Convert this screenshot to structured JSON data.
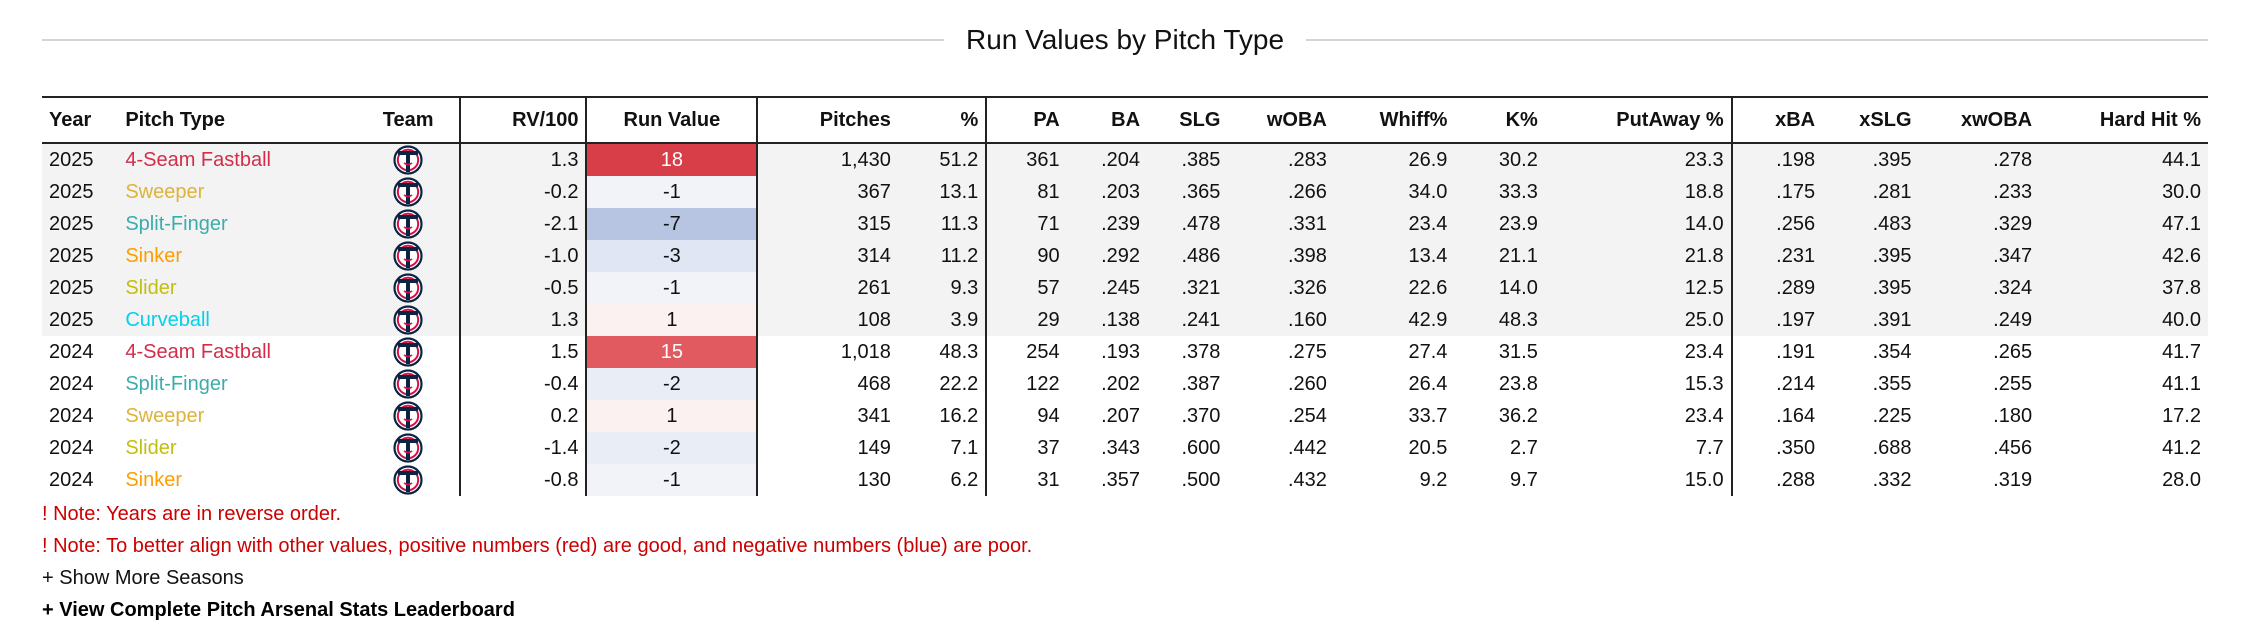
{
  "title": "Run Values by Pitch Type",
  "columns": [
    "Year",
    "Pitch Type",
    "Team",
    "RV/100",
    "Run Value",
    "Pitches",
    "%",
    "PA",
    "BA",
    "SLG",
    "wOBA",
    "Whiff%",
    "K%",
    "PutAway %",
    "xBA",
    "xSLG",
    "xwOBA",
    "Hard Hit %"
  ],
  "team_icon": "twins-logo-icon",
  "colors": {
    "note": "#cc0000"
  },
  "rows": [
    {
      "year": "2025",
      "pitch": "4-Seam Fastball",
      "pitch_color": "#d22d49",
      "team": "twins-logo",
      "rv100": "1.3",
      "rv": "18",
      "rv_bg": "#d83e48",
      "rv_fg": "#ffffff",
      "pitches": "1,430",
      "pct": "51.2",
      "pa": "361",
      "ba": ".204",
      "slg": ".385",
      "woba": ".283",
      "whiff": "26.9",
      "k": "30.2",
      "putaway": "23.3",
      "xba": ".198",
      "xslg": ".395",
      "xwoba": ".278",
      "hardhit": "44.1"
    },
    {
      "year": "2025",
      "pitch": "Sweeper",
      "pitch_color": "#ddb33a",
      "team": "twins-logo",
      "rv100": "-0.2",
      "rv": "-1",
      "rv_bg": "#f1f3f9",
      "rv_fg": "#111111",
      "pitches": "367",
      "pct": "13.1",
      "pa": "81",
      "ba": ".203",
      "slg": ".365",
      "woba": ".266",
      "whiff": "34.0",
      "k": "33.3",
      "putaway": "18.8",
      "xba": ".175",
      "xslg": ".281",
      "xwoba": ".233",
      "hardhit": "30.0"
    },
    {
      "year": "2025",
      "pitch": "Split-Finger",
      "pitch_color": "#3bacac",
      "team": "twins-logo",
      "rv100": "-2.1",
      "rv": "-7",
      "rv_bg": "#b7c4e2",
      "rv_fg": "#111111",
      "pitches": "315",
      "pct": "11.3",
      "pa": "71",
      "ba": ".239",
      "slg": ".478",
      "woba": ".331",
      "whiff": "23.4",
      "k": "23.9",
      "putaway": "14.0",
      "xba": ".256",
      "xslg": ".483",
      "xwoba": ".329",
      "hardhit": "47.1"
    },
    {
      "year": "2025",
      "pitch": "Sinker",
      "pitch_color": "#fe9d00",
      "team": "twins-logo",
      "rv100": "-1.0",
      "rv": "-3",
      "rv_bg": "#e0e6f3",
      "rv_fg": "#111111",
      "pitches": "314",
      "pct": "11.2",
      "pa": "90",
      "ba": ".292",
      "slg": ".486",
      "woba": ".398",
      "whiff": "13.4",
      "k": "21.1",
      "putaway": "21.8",
      "xba": ".231",
      "xslg": ".395",
      "xwoba": ".347",
      "hardhit": "42.6"
    },
    {
      "year": "2025",
      "pitch": "Slider",
      "pitch_color": "#c3bd0e",
      "team": "twins-logo",
      "rv100": "-0.5",
      "rv": "-1",
      "rv_bg": "#f1f3f9",
      "rv_fg": "#111111",
      "pitches": "261",
      "pct": "9.3",
      "pa": "57",
      "ba": ".245",
      "slg": ".321",
      "woba": ".326",
      "whiff": "22.6",
      "k": "14.0",
      "putaway": "12.5",
      "xba": ".289",
      "xslg": ".395",
      "xwoba": ".324",
      "hardhit": "37.8"
    },
    {
      "year": "2025",
      "pitch": "Curveball",
      "pitch_color": "#00d1ed",
      "team": "twins-logo",
      "rv100": "1.3",
      "rv": "1",
      "rv_bg": "#fbf1f1",
      "rv_fg": "#111111",
      "pitches": "108",
      "pct": "3.9",
      "pa": "29",
      "ba": ".138",
      "slg": ".241",
      "woba": ".160",
      "whiff": "42.9",
      "k": "48.3",
      "putaway": "25.0",
      "xba": ".197",
      "xslg": ".391",
      "xwoba": ".249",
      "hardhit": "40.0"
    },
    {
      "year": "2024",
      "pitch": "4-Seam Fastball",
      "pitch_color": "#d22d49",
      "team": "twins-logo",
      "rv100": "1.5",
      "rv": "15",
      "rv_bg": "#e05a60",
      "rv_fg": "#ffffff",
      "pitches": "1,018",
      "pct": "48.3",
      "pa": "254",
      "ba": ".193",
      "slg": ".378",
      "woba": ".275",
      "whiff": "27.4",
      "k": "31.5",
      "putaway": "23.4",
      "xba": ".191",
      "xslg": ".354",
      "xwoba": ".265",
      "hardhit": "41.7"
    },
    {
      "year": "2024",
      "pitch": "Split-Finger",
      "pitch_color": "#3bacac",
      "team": "twins-logo",
      "rv100": "-0.4",
      "rv": "-2",
      "rv_bg": "#e9edf6",
      "rv_fg": "#111111",
      "pitches": "468",
      "pct": "22.2",
      "pa": "122",
      "ba": ".202",
      "slg": ".387",
      "woba": ".260",
      "whiff": "26.4",
      "k": "23.8",
      "putaway": "15.3",
      "xba": ".214",
      "xslg": ".355",
      "xwoba": ".255",
      "hardhit": "41.1"
    },
    {
      "year": "2024",
      "pitch": "Sweeper",
      "pitch_color": "#ddb33a",
      "team": "twins-logo",
      "rv100": "0.2",
      "rv": "1",
      "rv_bg": "#fbf1f1",
      "rv_fg": "#111111",
      "pitches": "341",
      "pct": "16.2",
      "pa": "94",
      "ba": ".207",
      "slg": ".370",
      "woba": ".254",
      "whiff": "33.7",
      "k": "36.2",
      "putaway": "23.4",
      "xba": ".164",
      "xslg": ".225",
      "xwoba": ".180",
      "hardhit": "17.2"
    },
    {
      "year": "2024",
      "pitch": "Slider",
      "pitch_color": "#c3bd0e",
      "team": "twins-logo",
      "rv100": "-1.4",
      "rv": "-2",
      "rv_bg": "#e9edf6",
      "rv_fg": "#111111",
      "pitches": "149",
      "pct": "7.1",
      "pa": "37",
      "ba": ".343",
      "slg": ".600",
      "woba": ".442",
      "whiff": "20.5",
      "k": "2.7",
      "putaway": "7.7",
      "xba": ".350",
      "xslg": ".688",
      "xwoba": ".456",
      "hardhit": "41.2"
    },
    {
      "year": "2024",
      "pitch": "Sinker",
      "pitch_color": "#fe9d00",
      "team": "twins-logo",
      "rv100": "-0.8",
      "rv": "-1",
      "rv_bg": "#f1f3f9",
      "rv_fg": "#111111",
      "pitches": "130",
      "pct": "6.2",
      "pa": "31",
      "ba": ".357",
      "slg": ".500",
      "woba": ".432",
      "whiff": "9.2",
      "k": "9.7",
      "putaway": "15.0",
      "xba": ".288",
      "xslg": ".332",
      "xwoba": ".319",
      "hardhit": "28.0"
    }
  ],
  "notes": [
    "! Note: Years are in reverse order.",
    "! Note: To better align with other values, positive numbers (red) are good, and negative numbers (blue) are poor."
  ],
  "links": {
    "show_more": "+ Show More Seasons",
    "view_leaderboard": "+ View Complete Pitch Arsenal Stats Leaderboard"
  }
}
